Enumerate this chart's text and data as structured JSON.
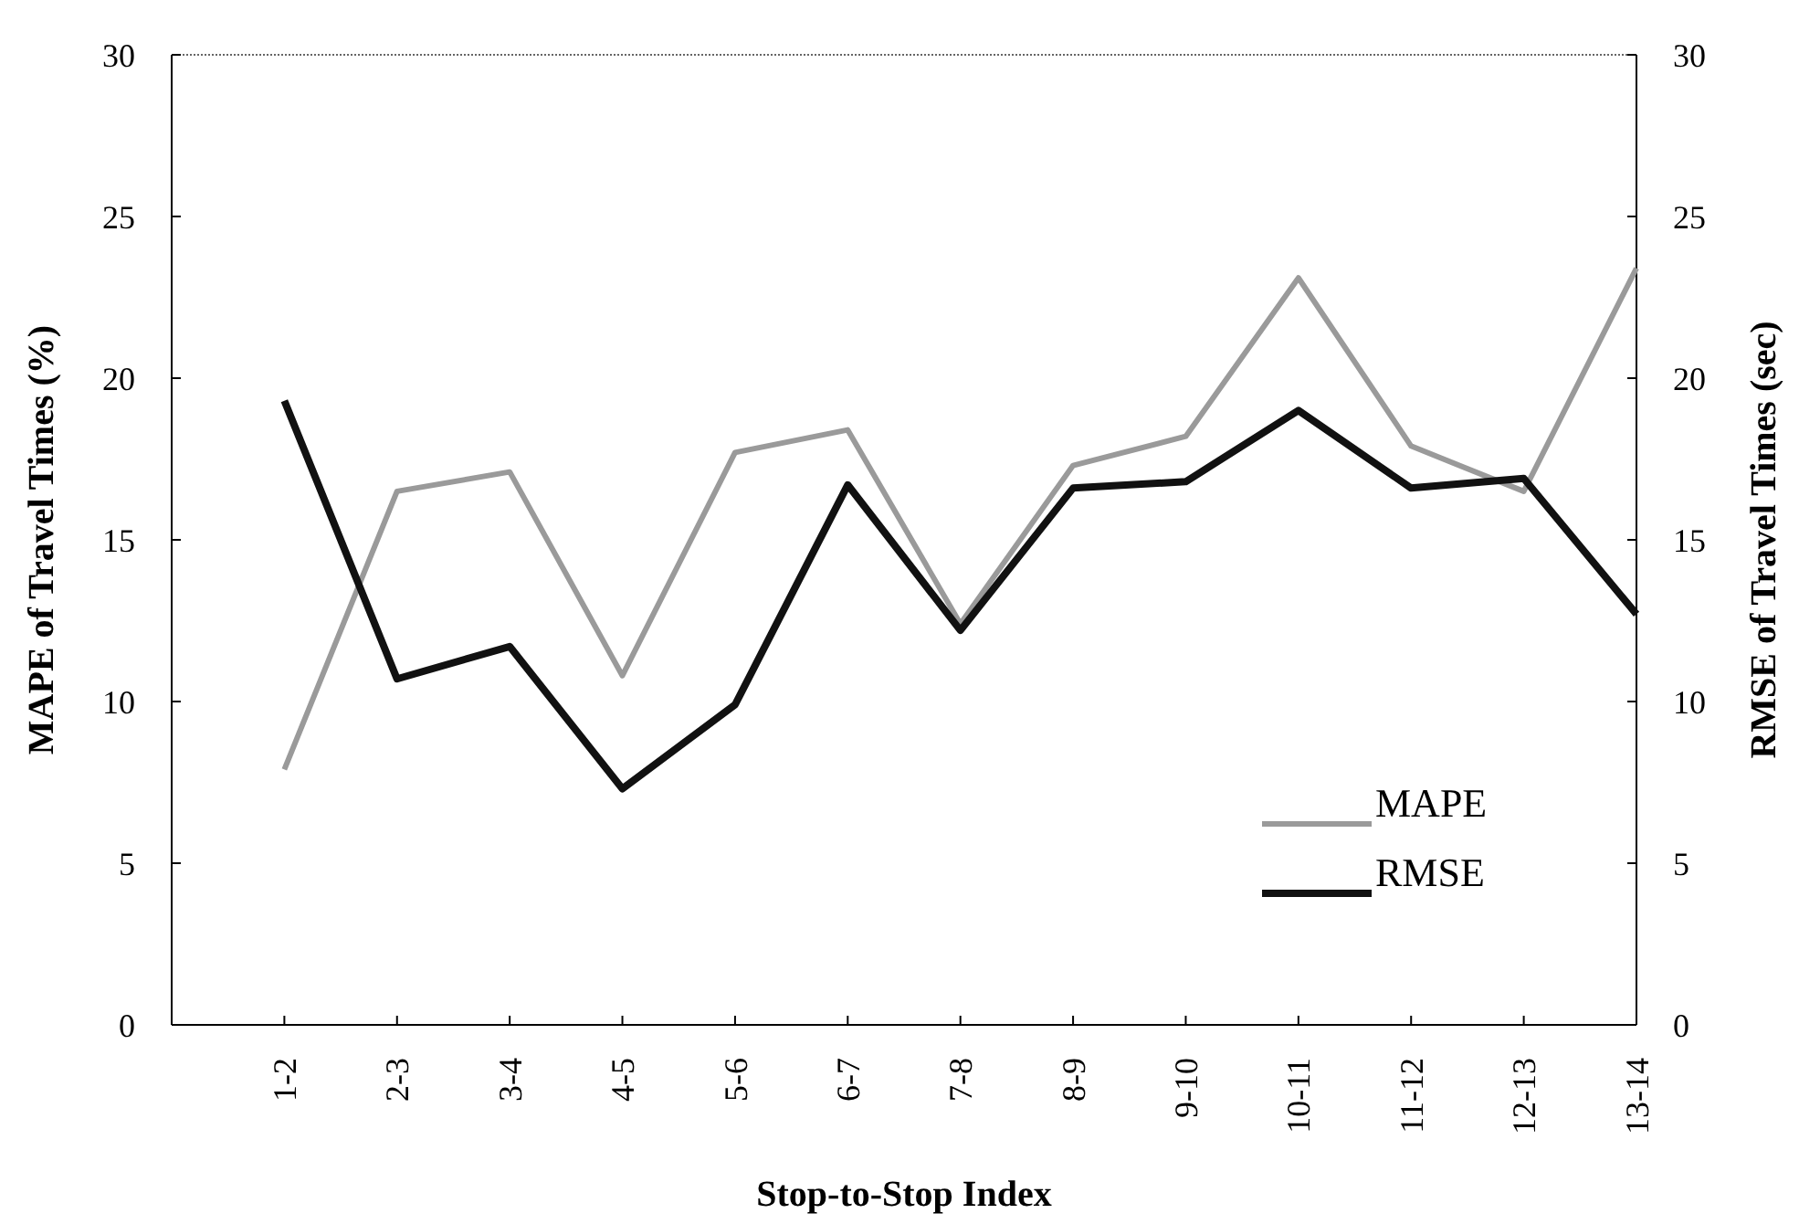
{
  "chart_data": {
    "type": "line",
    "xlabel": "Stop-to-Stop Index",
    "ylabel": "MAPE of Travel Times (%)",
    "y2label": "RMSE of Travel Times (sec)",
    "categories": [
      "1-2",
      "2-3",
      "3-4",
      "4-5",
      "5-6",
      "6-7",
      "7-8",
      "8-9",
      "9-10",
      "10-11",
      "11-12",
      "12-13",
      "13-14"
    ],
    "series": [
      {
        "name": "MAPE",
        "color": "#9a9a9a",
        "values": [
          7.9,
          16.5,
          17.1,
          10.8,
          17.7,
          18.4,
          12.4,
          17.3,
          18.2,
          23.1,
          17.9,
          16.5,
          23.4
        ]
      },
      {
        "name": "RMSE",
        "color": "#111111",
        "axis": "y2",
        "values": [
          19.3,
          10.7,
          11.7,
          7.3,
          9.9,
          16.7,
          12.2,
          16.6,
          16.8,
          19.0,
          16.6,
          16.9,
          12.7
        ]
      }
    ],
    "ylim": [
      0,
      30
    ],
    "yticks": [
      0,
      5,
      10,
      15,
      20,
      25,
      30
    ],
    "y2lim": [
      0,
      30
    ],
    "y2ticks": [
      0,
      5,
      10,
      15,
      20,
      25,
      30
    ],
    "legend": "bottom right",
    "grid": false,
    "marker": "none",
    "line_style": "solid"
  }
}
